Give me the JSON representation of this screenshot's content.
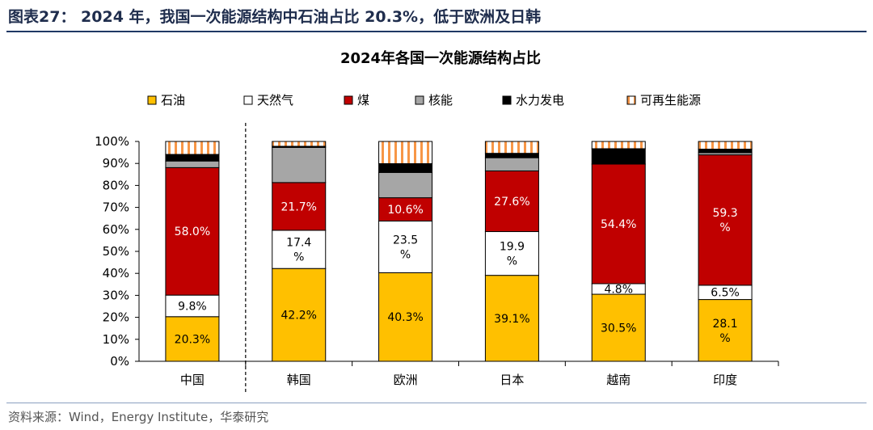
{
  "figure_title": "图表27： 2024 年，我国一次能源结构中石油占比 20.3%，低于欧洲及日韩",
  "source": "资料来源：Wind，Energy Institute，华泰研究",
  "colors": {
    "oil": "#FFC000",
    "gas": "#FFFFFF",
    "coal": "#C00000",
    "nuclear": "#A6A6A6",
    "hydro": "#000000",
    "renewable_stripe": "#F79646"
  },
  "chart_data": {
    "type": "bar",
    "stacked": true,
    "percent": true,
    "title": "2024年各国一次能源结构占比",
    "categories": [
      "中国",
      "韩国",
      "欧洲",
      "日本",
      "越南",
      "印度"
    ],
    "ylim": [
      0,
      100
    ],
    "yticks": [
      "0%",
      "10%",
      "20%",
      "30%",
      "40%",
      "50%",
      "60%",
      "70%",
      "80%",
      "90%",
      "100%"
    ],
    "legend_position": "top",
    "separator_after_category": "中国",
    "series": [
      {
        "name": "石油",
        "key": "oil",
        "values": [
          20.3,
          42.2,
          40.3,
          39.1,
          30.5,
          28.1
        ],
        "labels": [
          "20.3%",
          "42.2%",
          "40.3%",
          "39.1%",
          "30.5%",
          "28.1\n%"
        ]
      },
      {
        "name": "天然气",
        "key": "gas",
        "values": [
          9.8,
          17.4,
          23.5,
          19.9,
          4.8,
          6.5
        ],
        "labels": [
          "9.8%",
          "17.4\n%",
          "23.5\n%",
          "19.9\n%",
          "4.8%",
          "6.5%"
        ]
      },
      {
        "name": "煤",
        "key": "coal",
        "values": [
          58.0,
          21.7,
          10.6,
          27.6,
          54.4,
          59.3
        ],
        "labels": [
          "58.0%",
          "21.7%",
          "10.6%",
          "27.6%",
          "54.4%",
          "59.3\n%"
        ]
      },
      {
        "name": "核能",
        "key": "nuclear",
        "values": [
          3,
          16,
          11.5,
          6,
          0,
          1
        ],
        "labels": [
          "",
          "",
          "",
          "",
          "",
          ""
        ]
      },
      {
        "name": "水力发电",
        "key": "hydro",
        "values": [
          3,
          0.5,
          4,
          2,
          7,
          1.6
        ],
        "labels": [
          "",
          "",
          "",
          "",
          "",
          ""
        ]
      },
      {
        "name": "可再生能源",
        "key": "renewable",
        "values": [
          5.9,
          2.2,
          10.1,
          5.4,
          3.3,
          3.5
        ],
        "labels": [
          "",
          "",
          "",
          "",
          "",
          ""
        ]
      }
    ]
  }
}
